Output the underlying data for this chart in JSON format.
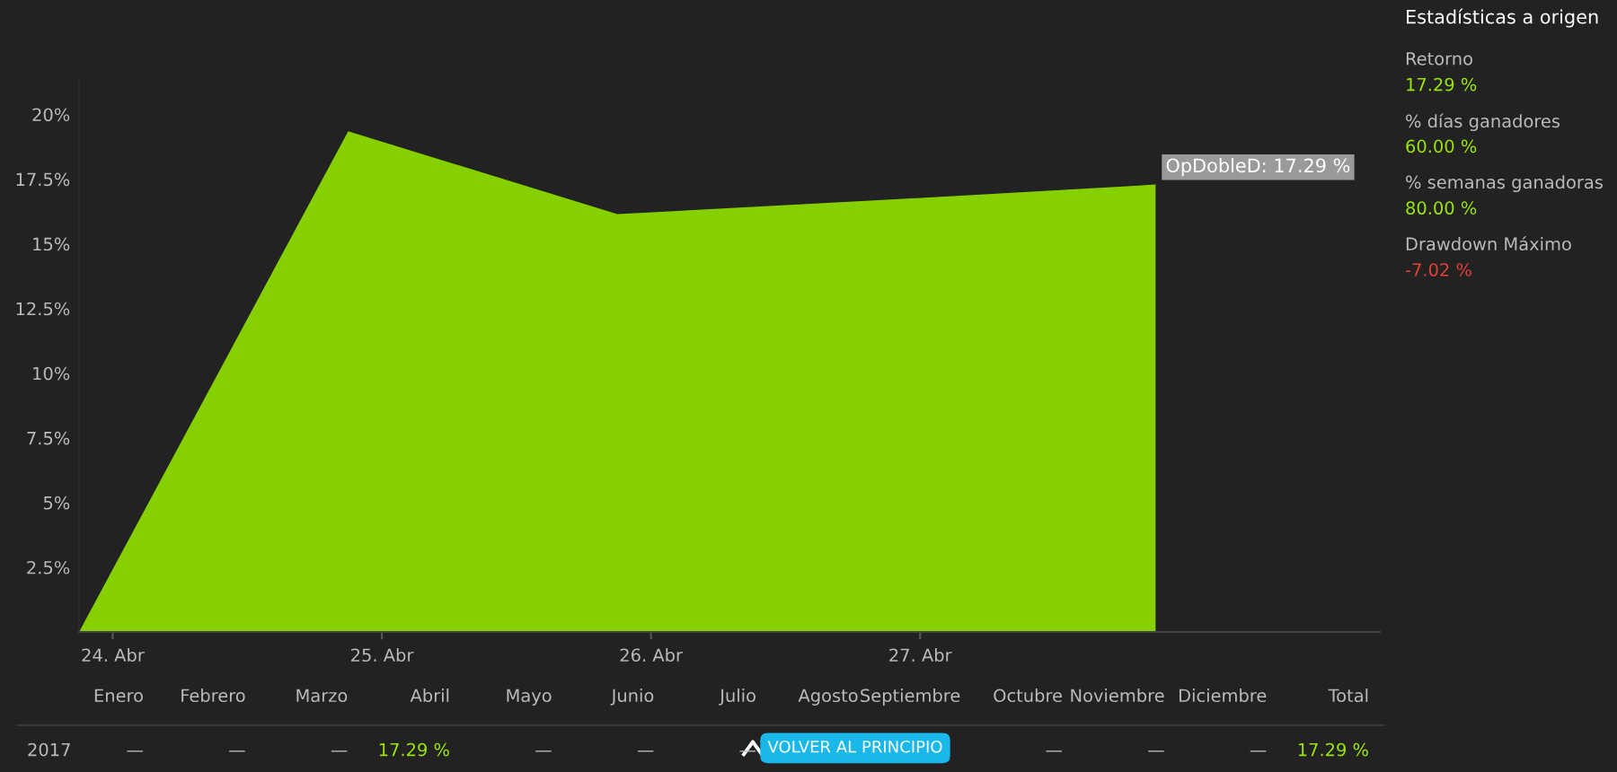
{
  "chart_data": [
    {
      "type": "area",
      "x": [
        "2017-04-23T21:00",
        "2017-04-24T21:00",
        "2017-04-25T21:00",
        "2017-04-26T21:00",
        "2017-04-27T21:00"
      ],
      "series": [
        {
          "color": "#86d000",
          "values": [
            0,
            19.35,
            16.15,
            16.7,
            17.29
          ]
        }
      ],
      "xlim": [
        "2017-04-23T21:00",
        "2017-04-28T17:00"
      ],
      "xticks": [
        {
          "value": "2017-04-24",
          "label": "24. Abr"
        },
        {
          "value": "2017-04-25",
          "label": "25. Abr"
        },
        {
          "value": "2017-04-26",
          "label": "26. Abr"
        },
        {
          "value": "2017-04-27",
          "label": "27. Abr"
        }
      ],
      "ylim": [
        0,
        21.3
      ],
      "yticks": [
        {
          "value": 2.5,
          "label": "2.5%"
        },
        {
          "value": 5,
          "label": "5%"
        },
        {
          "value": 7.5,
          "label": "7.5%"
        },
        {
          "value": 10,
          "label": "10%"
        },
        {
          "value": 12.5,
          "label": "12.5%"
        },
        {
          "value": 15,
          "label": "15%"
        },
        {
          "value": 17.5,
          "label": "17.5%"
        },
        {
          "value": 20,
          "label": "20%"
        }
      ],
      "grid": false,
      "legend": false,
      "annotations": [
        {
          "text": "OpDobleD: 17.29 %",
          "x": "2017-04-27T21:00",
          "y": 17.29
        }
      ]
    },
    {
      "type": "other",
      "title": "Estadísticas a origen",
      "annotations": [
        "Retorno",
        "17.29 %",
        "% días ganadores",
        "60.00 %",
        "% semanas ganadoras",
        "80.00 %",
        "Drawdown Máximo",
        "-7.02 %"
      ],
      "colors": [
        "#bbbbbb",
        "#9be60a",
        "#bbbbbb",
        "#9be60a",
        "#bbbbbb",
        "#9be60a",
        "#bbbbbb",
        "#e8403a"
      ]
    },
    {
      "type": "other",
      "categories": [
        "Enero",
        "Febrero",
        "Marzo",
        "Abril",
        "Mayo",
        "Junio",
        "Julio",
        "Agosto",
        "Septiembre",
        "Octubre",
        "Noviembre",
        "Diciembre",
        "Total"
      ],
      "y_categories": [
        "2017"
      ],
      "cell_labels": [
        [
          "—",
          "—",
          "—",
          "17.29 %",
          "—",
          "—",
          "—",
          null,
          null,
          "—",
          "—",
          "—",
          "17.29 %"
        ]
      ],
      "annotations": [
        "VOLVER AL PRINCIPIO"
      ]
    }
  ]
}
